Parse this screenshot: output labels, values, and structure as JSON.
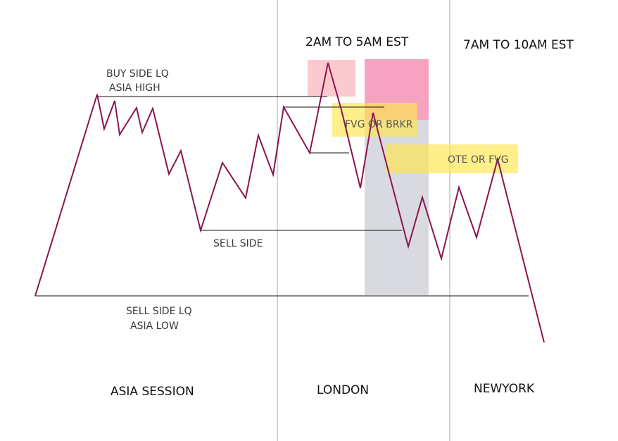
{
  "sessions": {
    "asia": "ASIA SESSION",
    "london": "LONDON",
    "newyork": "NEWYORK"
  },
  "windows": {
    "london": "2AM TO 5AM EST",
    "newyork": "7AM TO 10AM EST"
  },
  "levels": {
    "buy_side_lq": "BUY SIDE LQ",
    "asia_high": "ASIA HIGH",
    "sell_side": "SELL SIDE",
    "sell_side_lq": "SELL SIDE LQ",
    "asia_low": "ASIA LOW"
  },
  "zones": {
    "fvg_or_brkr": "FVG OR BRKR",
    "ote_or_fvg": "OTE OR FVG"
  },
  "colors": {
    "price_line": "#8b1450",
    "level_line": "#111111",
    "divider": "#aaaaaa",
    "yellow_zone": "#fde74c",
    "pink_light": "#f7a6ad",
    "pink_strong": "#f0669a",
    "grey_zone": "#c9cad2"
  }
}
